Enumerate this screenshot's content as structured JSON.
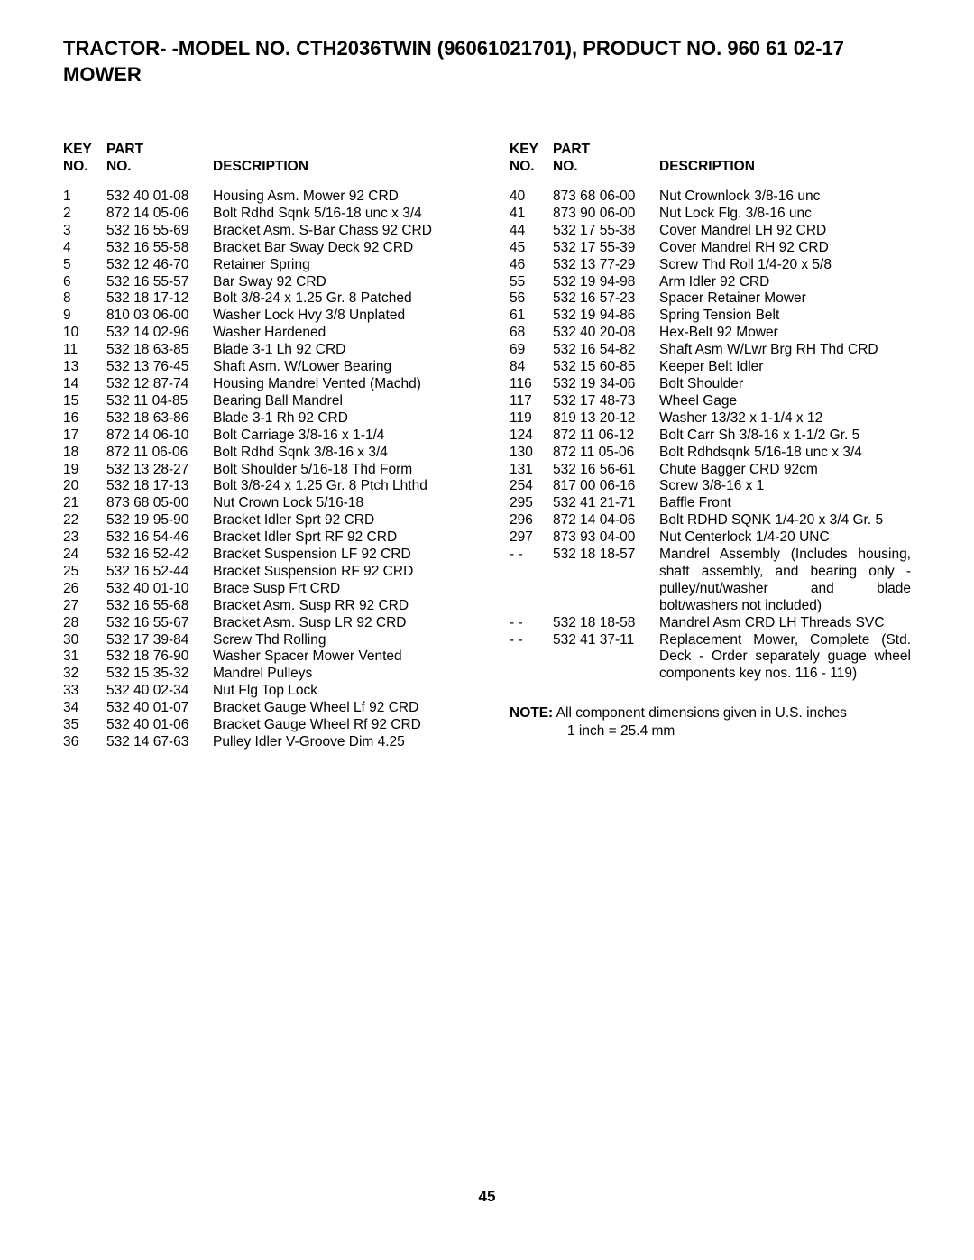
{
  "title_line1": "TRACTOR- -MODEL NO. CTH2036TWIN (96061021701), PRODUCT NO. 960 61 02-17",
  "title_line2": "MOWER",
  "header": {
    "key1": "KEY",
    "key2": "NO.",
    "part1": "PART",
    "part2": "NO.",
    "desc": "DESCRIPTION"
  },
  "left_rows": [
    {
      "k": "1",
      "p": "532 40 01-08",
      "d": "Housing Asm. Mower 92 CRD"
    },
    {
      "k": "2",
      "p": "872 14 05-06",
      "d": "Bolt Rdhd Sqnk 5/16-18 unc x 3/4"
    },
    {
      "k": "3",
      "p": "532 16 55-69",
      "d": "Bracket Asm. S-Bar Chass 92 CRD"
    },
    {
      "k": "4",
      "p": "532 16 55-58",
      "d": "Bracket Bar Sway Deck 92 CRD"
    },
    {
      "k": "5",
      "p": "532 12 46-70",
      "d": "Retainer Spring"
    },
    {
      "k": "6",
      "p": "532 16 55-57",
      "d": "Bar Sway 92 CRD"
    },
    {
      "k": "8",
      "p": "532 18 17-12",
      "d": "Bolt 3/8-24 x 1.25 Gr. 8 Patched"
    },
    {
      "k": "9",
      "p": "810 03 06-00",
      "d": "Washer Lock Hvy 3/8 Unplated"
    },
    {
      "k": "10",
      "p": "532 14 02-96",
      "d": "Washer Hardened"
    },
    {
      "k": "11",
      "p": "532 18 63-85",
      "d": "Blade 3-1 Lh 92 CRD"
    },
    {
      "k": "13",
      "p": "532 13 76-45",
      "d": "Shaft Asm. W/Lower Bearing"
    },
    {
      "k": "14",
      "p": "532 12 87-74",
      "d": "Housing Mandrel Vented (Machd)"
    },
    {
      "k": "15",
      "p": "532 11 04-85",
      "d": "Bearing Ball Mandrel"
    },
    {
      "k": "16",
      "p": "532 18 63-86",
      "d": "Blade 3-1 Rh 92 CRD"
    },
    {
      "k": "17",
      "p": "872 14 06-10",
      "d": "Bolt Carriage 3/8-16 x 1-1/4"
    },
    {
      "k": "18",
      "p": "872 11 06-06",
      "d": "Bolt Rdhd Sqnk 3/8-16 x 3/4"
    },
    {
      "k": "19",
      "p": "532 13 28-27",
      "d": "Bolt Shoulder 5/16-18 Thd Form"
    },
    {
      "k": "20",
      "p": "532 18 17-13",
      "d": "Bolt 3/8-24 x 1.25 Gr. 8 Ptch Lhthd"
    },
    {
      "k": "21",
      "p": "873 68 05-00",
      "d": "Nut Crown Lock 5/16-18"
    },
    {
      "k": "22",
      "p": "532 19 95-90",
      "d": "Bracket Idler Sprt 92 CRD"
    },
    {
      "k": "23",
      "p": "532 16 54-46",
      "d": "Bracket Idler Sprt RF 92 CRD"
    },
    {
      "k": "24",
      "p": "532 16 52-42",
      "d": "Bracket Suspension LF 92 CRD"
    },
    {
      "k": "25",
      "p": "532 16 52-44",
      "d": "Bracket Suspension RF 92 CRD"
    },
    {
      "k": "26",
      "p": "532 40 01-10",
      "d": "Brace Susp Frt CRD"
    },
    {
      "k": "27",
      "p": "532 16 55-68",
      "d": "Bracket Asm. Susp RR 92 CRD"
    },
    {
      "k": "28",
      "p": "532 16 55-67",
      "d": "Bracket Asm. Susp LR 92 CRD"
    },
    {
      "k": "30",
      "p": "532 17 39-84",
      "d": "Screw Thd Rolling"
    },
    {
      "k": "31",
      "p": "532 18 76-90",
      "d": "Washer Spacer Mower Vented"
    },
    {
      "k": "32",
      "p": "532 15 35-32",
      "d": "Mandrel Pulleys"
    },
    {
      "k": "33",
      "p": "532 40 02-34",
      "d": "Nut Flg Top Lock"
    },
    {
      "k": "34",
      "p": "532 40 01-07",
      "d": "Bracket Gauge Wheel Lf 92 CRD"
    },
    {
      "k": "35",
      "p": "532 40 01-06",
      "d": "Bracket Gauge Wheel Rf 92 CRD"
    },
    {
      "k": "36",
      "p": "532 14 67-63",
      "d": "Pulley Idler V-Groove Dim 4.25"
    }
  ],
  "right_rows": [
    {
      "k": "40",
      "p": "873 68 06-00",
      "d": "Nut Crownlock 3/8-16 unc"
    },
    {
      "k": "41",
      "p": "873 90 06-00",
      "d": "Nut Lock Flg. 3/8-16 unc"
    },
    {
      "k": "44",
      "p": "532 17 55-38",
      "d": "Cover Mandrel LH 92 CRD"
    },
    {
      "k": "45",
      "p": "532 17 55-39",
      "d": "Cover Mandrel RH 92 CRD"
    },
    {
      "k": "46",
      "p": "532 13 77-29",
      "d": "Screw Thd Roll 1/4-20 x 5/8"
    },
    {
      "k": "55",
      "p": "532 19 94-98",
      "d": "Arm Idler 92 CRD"
    },
    {
      "k": "56",
      "p": "532 16 57-23",
      "d": "Spacer Retainer Mower"
    },
    {
      "k": "61",
      "p": "532 19 94-86",
      "d": "Spring Tension Belt"
    },
    {
      "k": "68",
      "p": "532 40 20-08",
      "d": "Hex-Belt 92 Mower"
    },
    {
      "k": "69",
      "p": "532 16 54-82",
      "d": "Shaft Asm W/Lwr Brg RH Thd CRD"
    },
    {
      "k": "84",
      "p": "532 15 60-85",
      "d": "Keeper Belt Idler"
    },
    {
      "k": "116",
      "p": "532 19 34-06",
      "d": "Bolt Shoulder"
    },
    {
      "k": "117",
      "p": "532 17 48-73",
      "d": "Wheel Gage"
    },
    {
      "k": "119",
      "p": "819 13 20-12",
      "d": "Washer 13/32 x 1-1/4 x 12"
    },
    {
      "k": "124",
      "p": "872 11 06-12",
      "d": "Bolt Carr Sh 3/8-16 x 1-1/2 Gr. 5"
    },
    {
      "k": "130",
      "p": "872 11 05-06",
      "d": "Bolt Rdhdsqnk 5/16-18 unc x 3/4"
    },
    {
      "k": "131",
      "p": "532 16 56-61",
      "d": "Chute Bagger CRD 92cm"
    },
    {
      "k": "254",
      "p": "817 00 06-16",
      "d": "Screw 3/8-16 x 1"
    },
    {
      "k": "295",
      "p": "532 41 21-71",
      "d": "Baffle Front"
    },
    {
      "k": "296",
      "p": "872 14 04-06",
      "d": "Bolt RDHD SQNK 1/4-20 x 3/4 Gr. 5"
    },
    {
      "k": "297",
      "p": "873 93 04-00",
      "d": "Nut Centerlock 1/4-20 UNC"
    },
    {
      "k": "- -",
      "p": "532 18 18-57",
      "d": "Mandrel Assembly (Includes housing, shaft assembly, and bearing only - pulley/nut/washer and blade bolt/washers not included)",
      "just": true
    },
    {
      "k": "- -",
      "p": "532 18 18-58",
      "d": "Mandrel Asm CRD LH Threads SVC"
    },
    {
      "k": "- -",
      "p": "532 41 37-11",
      "d": "Replacement Mower, Complete (Std. Deck - Order separately guage wheel components key nos. 116 - 119)",
      "just": true
    }
  ],
  "note_label": "NOTE:",
  "note_text1": "All component dimensions given in U.S. inches",
  "note_text2": "1 inch = 25.4 mm",
  "page_number": "45"
}
